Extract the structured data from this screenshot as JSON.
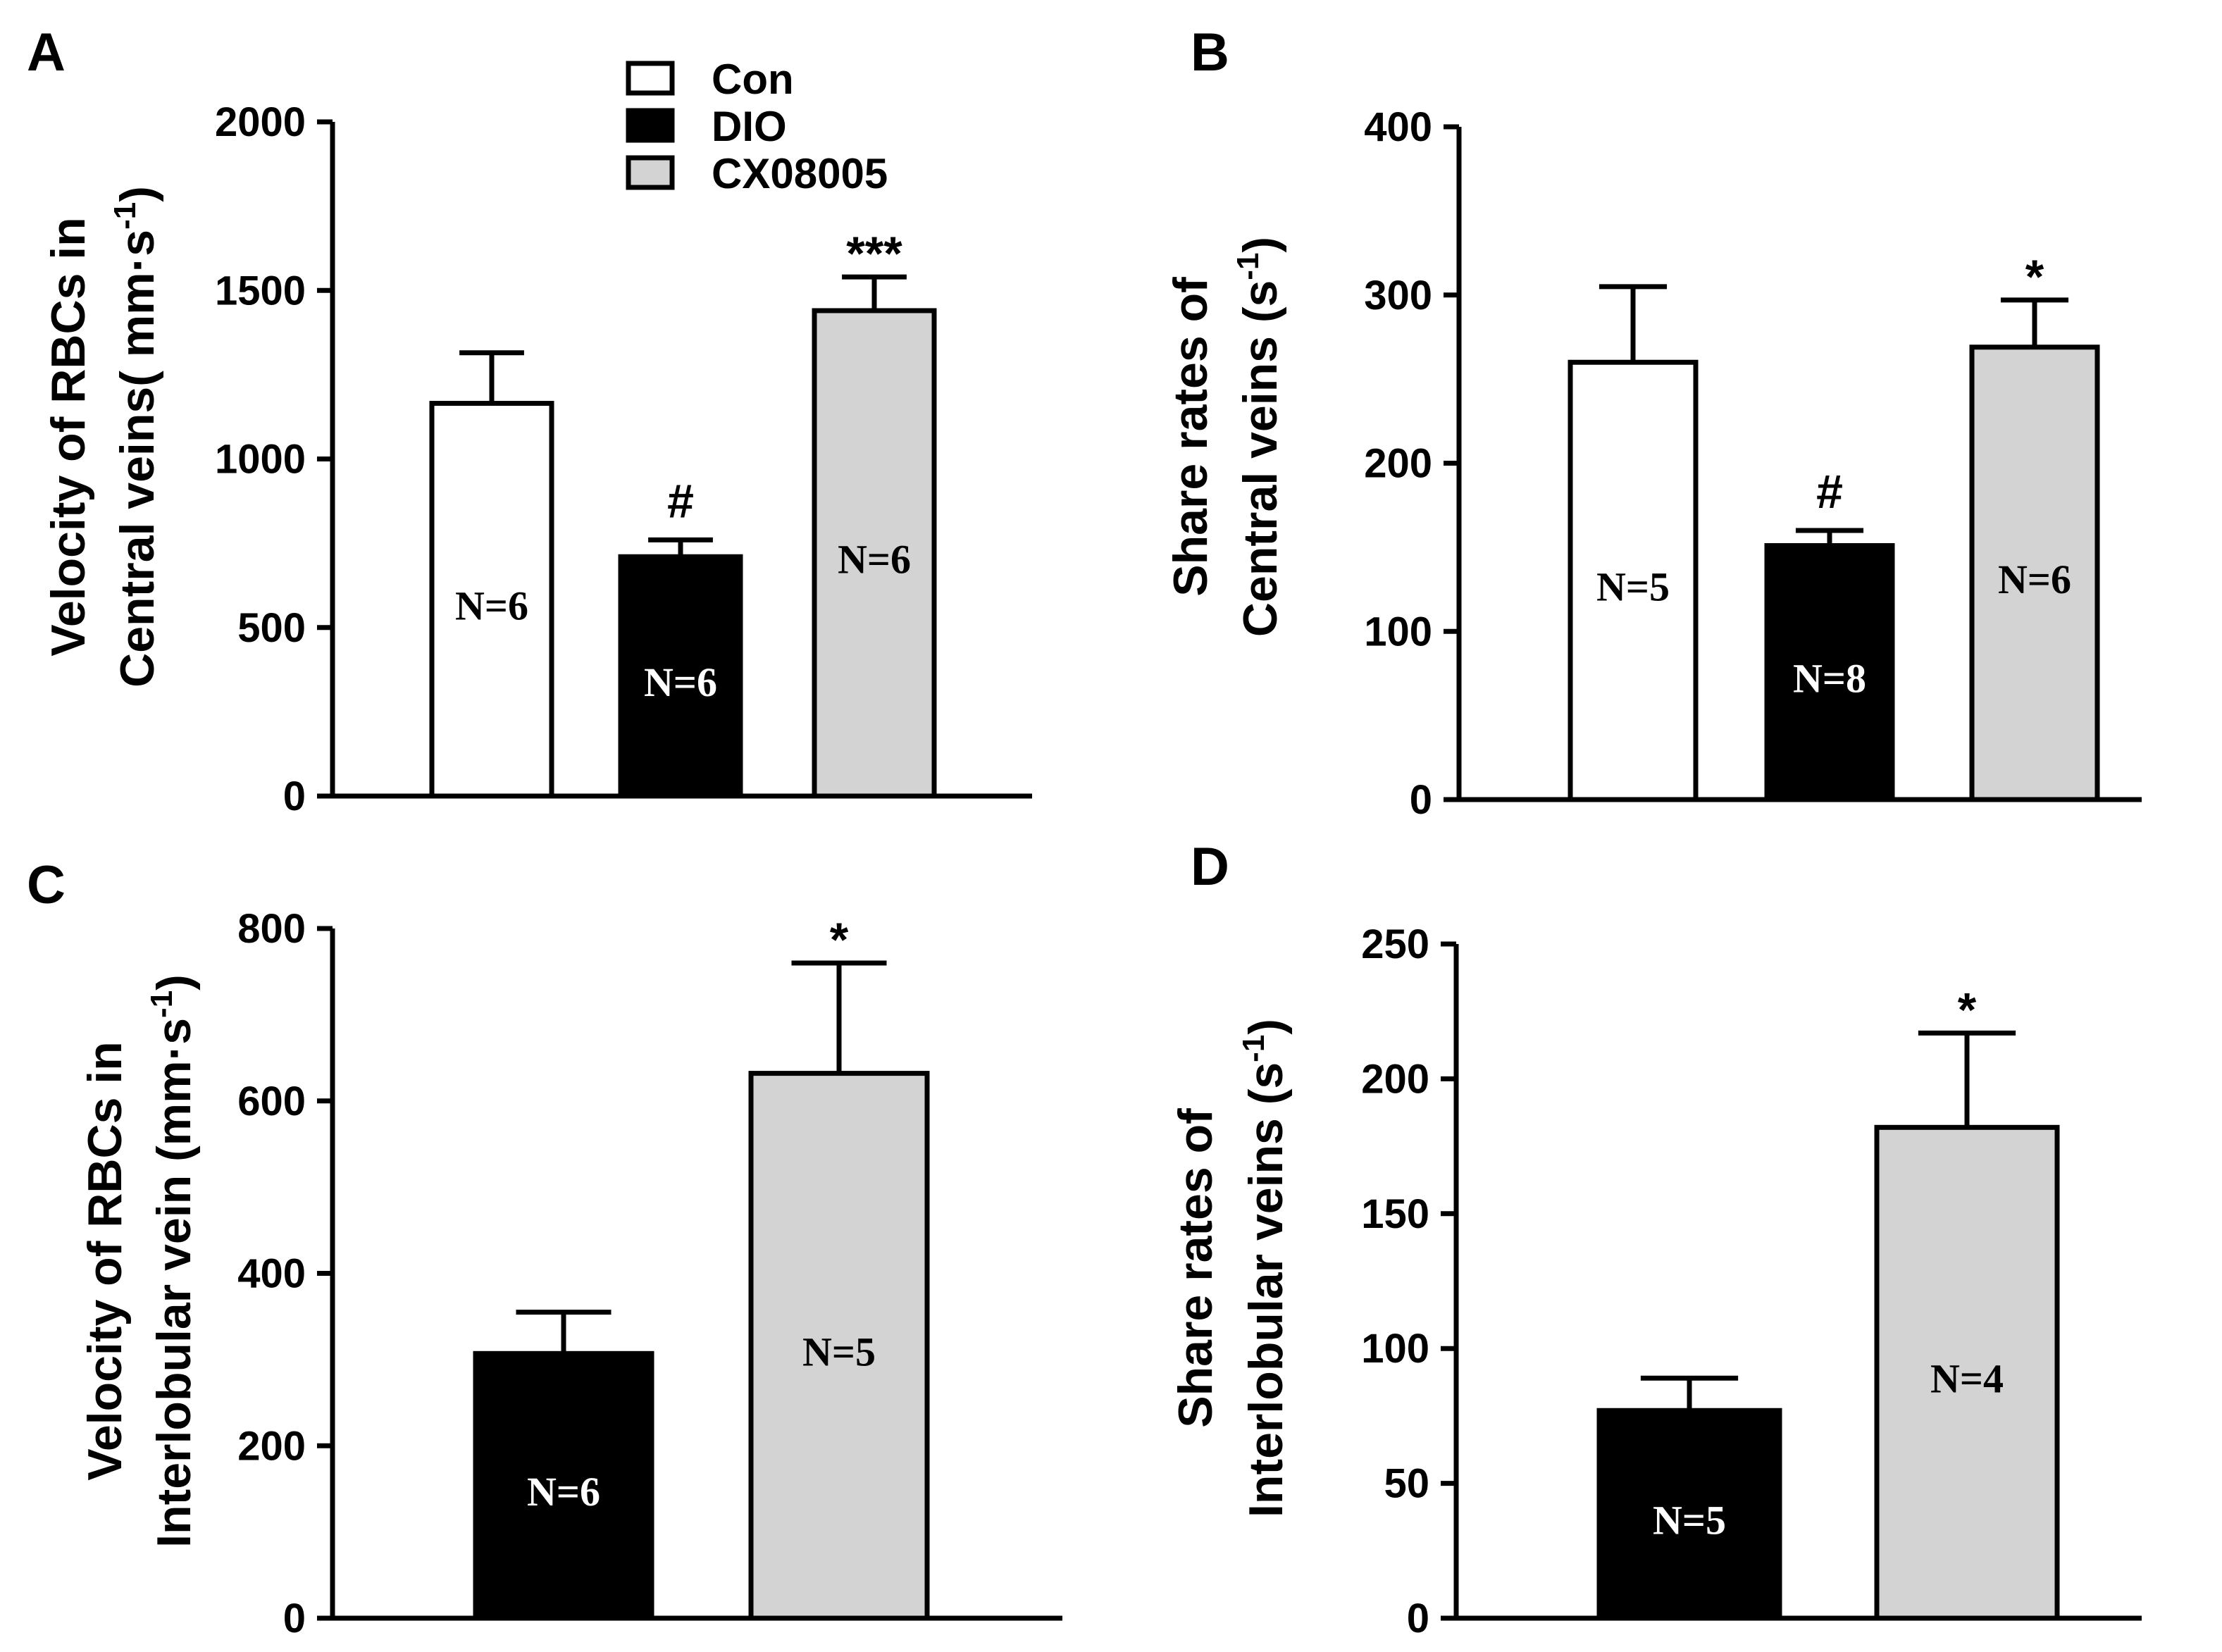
{
  "colors": {
    "Con": "#ffffff",
    "DIO": "#000000",
    "CX08005": "#d3d3d3"
  },
  "legend": [
    {
      "label": "Con",
      "color": "#ffffff"
    },
    {
      "label": "DIO",
      "color": "#000000"
    },
    {
      "label": "CX08005",
      "color": "#d3d3d3"
    }
  ],
  "chart_data": [
    {
      "panel": "A",
      "type": "bar",
      "categories": [
        "Con",
        "DIO",
        "CX08005"
      ],
      "values": [
        1165,
        710,
        1440
      ],
      "errors": [
        150,
        50,
        100
      ],
      "n_labels": [
        "N=6",
        "N=6",
        "N=6"
      ],
      "significance": [
        "",
        "#",
        "***"
      ],
      "ylabel_line1": "Velocity of RBCs in",
      "ylabel_line2": "Central veins( mm·s",
      "ylabel_sup": "-1",
      "ylabel_close": ")",
      "ylim": [
        0,
        2000
      ],
      "yticks": [
        0,
        500,
        1000,
        1500,
        2000
      ]
    },
    {
      "panel": "B",
      "type": "bar",
      "categories": [
        "Con",
        "DIO",
        "CX08005"
      ],
      "values": [
        260,
        151,
        269
      ],
      "errors": [
        45,
        9,
        28
      ],
      "n_labels": [
        "N=5",
        "N=8",
        "N=6"
      ],
      "significance": [
        "",
        "#",
        "*"
      ],
      "ylabel_line1": "Share rates of",
      "ylabel_line2": "Central veins (s",
      "ylabel_sup": "-1",
      "ylabel_close": ")",
      "ylim": [
        0,
        400
      ],
      "yticks": [
        0,
        100,
        200,
        300,
        400
      ]
    },
    {
      "panel": "C",
      "type": "bar",
      "categories": [
        "DIO",
        "CX08005"
      ],
      "values": [
        307,
        632
      ],
      "errors": [
        48,
        128
      ],
      "n_labels": [
        "N=6",
        "N=5"
      ],
      "significance": [
        "",
        "*"
      ],
      "ylabel_line1": "Velocity of RBCs in",
      "ylabel_line2": "Interlobular vein (mm·s",
      "ylabel_sup": "-1",
      "ylabel_close": ")",
      "ylim": [
        0,
        800
      ],
      "yticks": [
        0,
        200,
        400,
        600,
        800
      ]
    },
    {
      "panel": "D",
      "type": "bar",
      "categories": [
        "DIO",
        "CX08005"
      ],
      "values": [
        77,
        182
      ],
      "errors": [
        12,
        35
      ],
      "n_labels": [
        "N=5",
        "N=4"
      ],
      "significance": [
        "",
        "*"
      ],
      "ylabel_line1": "Share rates of",
      "ylabel_line2": "Interlobular veins (s",
      "ylabel_sup": "-1",
      "ylabel_close": ")",
      "ylim": [
        0,
        250
      ],
      "yticks": [
        0,
        50,
        100,
        150,
        200,
        250
      ]
    }
  ]
}
